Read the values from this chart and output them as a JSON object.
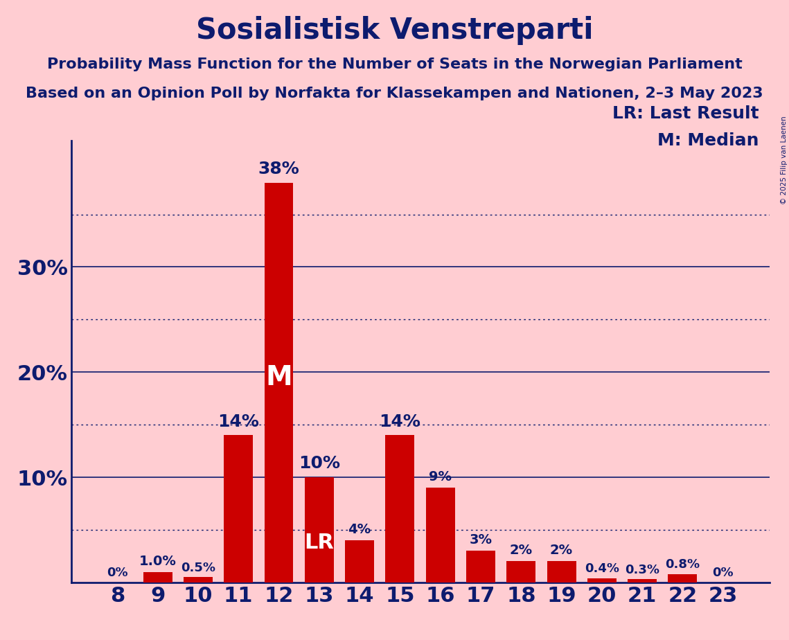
{
  "title": "Sosialistisk Venstreparti",
  "subtitle1": "Probability Mass Function for the Number of Seats in the Norwegian Parliament",
  "subtitle2": "Based on an Opinion Poll by Norfakta for Klassekampen and Nationen, 2–3 May 2023",
  "copyright": "© 2025 Filip van Laenen",
  "seats": [
    8,
    9,
    10,
    11,
    12,
    13,
    14,
    15,
    16,
    17,
    18,
    19,
    20,
    21,
    22,
    23
  ],
  "probabilities": [
    0.0,
    1.0,
    0.5,
    14.0,
    38.0,
    10.0,
    4.0,
    14.0,
    9.0,
    3.0,
    2.0,
    2.0,
    0.4,
    0.3,
    0.8,
    0.0
  ],
  "bar_labels": [
    "0%",
    "1.0%",
    "0.5%",
    "14%",
    "38%",
    "10%",
    "4%",
    "14%",
    "9%",
    "3%",
    "2%",
    "2%",
    "0.4%",
    "0.3%",
    "0.8%",
    "0%"
  ],
  "bar_color": "#CC0000",
  "background_color": "#FFCDD2",
  "title_color": "#0D1B6E",
  "axis_color": "#0D1B6E",
  "bar_label_color_outside": "#0D1B6E",
  "bar_label_color_inside": "#FFFFFF",
  "median_seat": 12,
  "lr_seat": 13,
  "legend_lr": "LR: Last Result",
  "legend_m": "M: Median",
  "ylim": [
    0,
    42
  ],
  "yticks": [
    10,
    20,
    30
  ],
  "dotted_yticks": [
    5,
    15,
    25,
    35
  ],
  "title_fontsize": 30,
  "subtitle_fontsize": 16,
  "bar_label_fontsize_large": 18,
  "bar_label_fontsize_small": 14,
  "xtick_fontsize": 22,
  "ytick_fontsize": 22,
  "legend_fontsize": 18,
  "m_fontsize": 28,
  "lr_fontsize": 22
}
